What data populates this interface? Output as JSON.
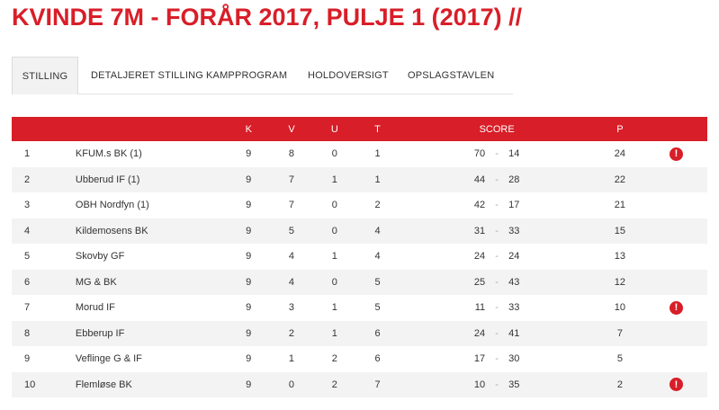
{
  "page": {
    "title": "KVINDE 7M - FORÅR 2017, PULJE 1 (2017) //"
  },
  "tabs": [
    {
      "label": "STILLING",
      "active": true
    },
    {
      "label": "DETALJERET STILLING",
      "active": false
    },
    {
      "label": "KAMPPROGRAM",
      "active": false
    },
    {
      "label": "HOLDOVERSIGT",
      "active": false
    },
    {
      "label": "OPSLAGSTAVLEN",
      "active": false
    }
  ],
  "table": {
    "headers": {
      "rank": "",
      "team": "",
      "k": "K",
      "v": "V",
      "u": "U",
      "t": "T",
      "score": "SCORE",
      "p": "P"
    },
    "score_separator": "-",
    "alert_symbol": "!",
    "rows": [
      {
        "rank": "1",
        "team": "KFUM.s BK (1)",
        "k": "9",
        "v": "8",
        "u": "0",
        "t": "1",
        "for": "70",
        "against": "14",
        "p": "24",
        "alert": true
      },
      {
        "rank": "2",
        "team": "Ubberud IF (1)",
        "k": "9",
        "v": "7",
        "u": "1",
        "t": "1",
        "for": "44",
        "against": "28",
        "p": "22",
        "alert": false
      },
      {
        "rank": "3",
        "team": "OBH Nordfyn (1)",
        "k": "9",
        "v": "7",
        "u": "0",
        "t": "2",
        "for": "42",
        "against": "17",
        "p": "21",
        "alert": false
      },
      {
        "rank": "4",
        "team": "Kildemosens BK",
        "k": "9",
        "v": "5",
        "u": "0",
        "t": "4",
        "for": "31",
        "against": "33",
        "p": "15",
        "alert": false
      },
      {
        "rank": "5",
        "team": "Skovby GF",
        "k": "9",
        "v": "4",
        "u": "1",
        "t": "4",
        "for": "24",
        "against": "24",
        "p": "13",
        "alert": false
      },
      {
        "rank": "6",
        "team": "MG & BK",
        "k": "9",
        "v": "4",
        "u": "0",
        "t": "5",
        "for": "25",
        "against": "43",
        "p": "12",
        "alert": false
      },
      {
        "rank": "7",
        "team": "Morud IF",
        "k": "9",
        "v": "3",
        "u": "1",
        "t": "5",
        "for": "11",
        "against": "33",
        "p": "10",
        "alert": true
      },
      {
        "rank": "8",
        "team": "Ebberup IF",
        "k": "9",
        "v": "2",
        "u": "1",
        "t": "6",
        "for": "24",
        "against": "41",
        "p": "7",
        "alert": false
      },
      {
        "rank": "9",
        "team": "Veflinge G & IF",
        "k": "9",
        "v": "1",
        "u": "2",
        "t": "6",
        "for": "17",
        "against": "30",
        "p": "5",
        "alert": false
      },
      {
        "rank": "10",
        "team": "Flemløse BK",
        "k": "9",
        "v": "0",
        "u": "2",
        "t": "7",
        "for": "10",
        "against": "35",
        "p": "2",
        "alert": true
      }
    ]
  },
  "colors": {
    "accent": "#d81e28",
    "row_alt": "#f3f3f3",
    "tab_active_bg": "#f2f2f2"
  }
}
